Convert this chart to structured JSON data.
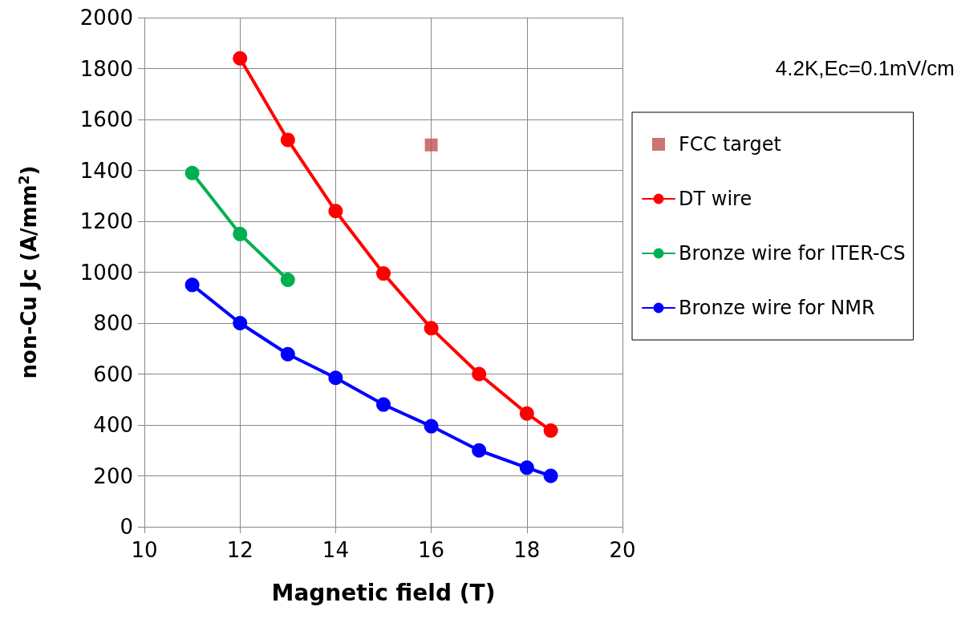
{
  "chart_data": {
    "type": "line",
    "xlabel": "Magnetic field (T)",
    "ylabel": "non-Cu Jc (A/mm$^{2}$)",
    "xlim": [
      10,
      20
    ],
    "xticks": [
      10,
      12,
      14,
      16,
      18,
      20
    ],
    "ylim": [
      0,
      2000
    ],
    "yticks": [
      0,
      200,
      400,
      600,
      800,
      1000,
      1200,
      1400,
      1600,
      1800,
      2000
    ],
    "grid": true,
    "legend": "right",
    "marker": "circle",
    "line_style": "solid",
    "annotations": [
      "4.2K,Ec=0.1mV/cm"
    ],
    "series": [
      {
        "name": "FCC target",
        "type": "scatter",
        "marker": "square",
        "color": "#c0504d",
        "x": [
          16
        ],
        "values": [
          1500
        ]
      },
      {
        "name": "DT wire",
        "color": "#ff0000",
        "x": [
          12,
          13,
          14,
          15,
          16,
          17,
          18,
          18.5
        ],
        "values": [
          1840,
          1520,
          1240,
          995,
          780,
          600,
          445,
          378
        ]
      },
      {
        "name": "Bronze wire for ITER-CS",
        "color": "#00b050",
        "x": [
          11,
          12,
          13
        ],
        "values": [
          1390,
          1150,
          970
        ]
      },
      {
        "name": "Bronze wire for NMR",
        "color": "#0000ff",
        "x": [
          11,
          12,
          13,
          14,
          15,
          16,
          17,
          18,
          18.5
        ],
        "values": [
          950,
          800,
          678,
          585,
          480,
          395,
          300,
          232,
          200
        ]
      }
    ]
  }
}
